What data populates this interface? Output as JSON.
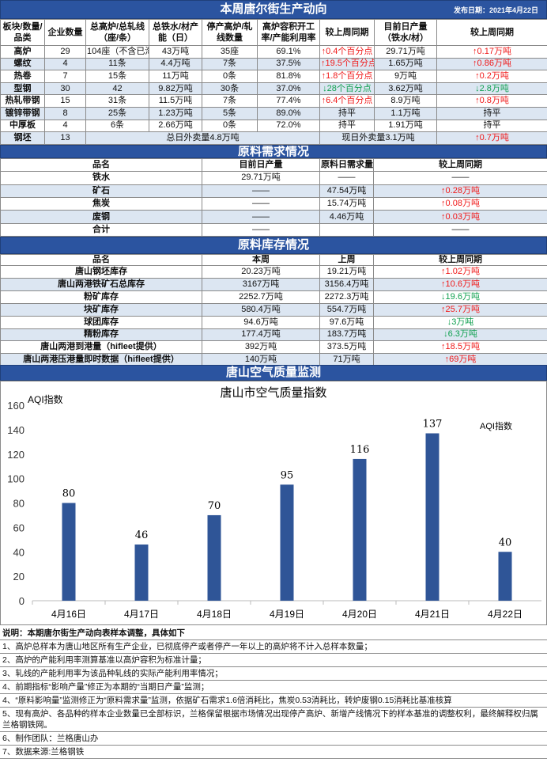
{
  "header": {
    "title": "本周唐尔街生产动向",
    "publish_date": "发布日期：2021年4月22日"
  },
  "production": {
    "columns": [
      "板块/数量/品类",
      "企业数量",
      "总高炉/总轧线（座/条）",
      "总铁水/材产能（日）",
      "停产高炉/轧线数量",
      "高炉容积开工率/产能利用率",
      "较上周同期",
      "目前日产量（铁水/材）",
      "较上周同期"
    ],
    "rows": [
      [
        "高炉",
        "29",
        "104座（不含已淘",
        "43万吨",
        "35座",
        "69.1%",
        "↑0.4个百分点",
        "29.71万吨",
        "↑0.17万吨"
      ],
      [
        "螺纹",
        "4",
        "11条",
        "4.4万吨",
        "7条",
        "37.5%",
        "↑19.5个百分点",
        "1.65万吨",
        "↑0.86万吨"
      ],
      [
        "热卷",
        "7",
        "15条",
        "11万吨",
        "0条",
        "81.8%",
        "↑1.8个百分点",
        "9万吨",
        "↑0.2万吨"
      ],
      [
        "型钢",
        "30",
        "42",
        "9.82万吨",
        "30条",
        "37.0%",
        "↓28个百分点",
        "3.62万吨",
        "↓2.8万吨"
      ],
      [
        "热轧带钢",
        "15",
        "31条",
        "11.5万吨",
        "7条",
        "77.4%",
        "↑6.4个百分点",
        "8.9万吨",
        "↑0.8万吨"
      ],
      [
        "镀锌带钢",
        "8",
        "25条",
        "1.23万吨",
        "5条",
        "89.0%",
        "持平",
        "1.1万吨",
        "持平"
      ],
      [
        "中厚板",
        "4",
        "6条",
        "2.66万吨",
        "0条",
        "72.0%",
        "持平",
        "1.91万吨",
        "持平"
      ]
    ],
    "billet": {
      "name": "钢坯",
      "count": "13",
      "total_sales": "总日外卖量4.8万吨",
      "current_sales": "现日外卖量3.1万吨",
      "change": "↑0.7万吨"
    }
  },
  "demand": {
    "title": "原料需求情况",
    "columns": [
      "品名",
      "目前日产量",
      "原料日需求量",
      "较上周同期"
    ],
    "rows": [
      [
        "铁水",
        "29.71万吨",
        "——",
        "——"
      ],
      [
        "矿石",
        "——",
        "47.54万吨",
        "↑0.28万吨"
      ],
      [
        "焦炭",
        "——",
        "15.74万吨",
        "↑0.08万吨"
      ],
      [
        "废钢",
        "——",
        "4.46万吨",
        "↑0.03万吨"
      ],
      [
        "合计",
        "——",
        "",
        "——"
      ]
    ]
  },
  "inventory": {
    "title": "原料库存情况",
    "columns": [
      "品名",
      "本周",
      "上周",
      "较上周同期"
    ],
    "rows": [
      [
        "唐山钢坯库存",
        "20.23万吨",
        "19.21万吨",
        "↑1.02万吨"
      ],
      [
        "唐山两港铁矿石总库存",
        "3167万吨",
        "3156.4万吨",
        "↑10.6万吨"
      ],
      [
        "粉矿库存",
        "2252.7万吨",
        "2272.3万吨",
        "↓19.6万吨"
      ],
      [
        "块矿库存",
        "580.4万吨",
        "554.7万吨",
        "↑25.7万吨"
      ],
      [
        "球团库存",
        "94.6万吨",
        "97.6万吨",
        "↓3万吨"
      ],
      [
        "精粉库存",
        "177.4万吨",
        "183.7万吨",
        "↓6.3万吨"
      ],
      [
        "唐山两港到港量（hifleet提供）",
        "392万吨",
        "373.5万吨",
        "↑18.5万吨"
      ],
      [
        "唐山两港压港量即时数据（hifleet提供）",
        "140万吨",
        "71万吨",
        "↑69万吨"
      ]
    ]
  },
  "air": {
    "title": "唐山空气质量监测"
  },
  "chart_data": {
    "type": "bar",
    "title": "唐山市空气质量指数",
    "ylabel": "AQI指数",
    "legend": "AQI指数",
    "categories": [
      "4月16日",
      "4月17日",
      "4月18日",
      "4月19日",
      "4月20日",
      "4月21日",
      "4月22日"
    ],
    "values": [
      80,
      46,
      70,
      95,
      116,
      137,
      40
    ],
    "ylim": [
      0,
      160
    ],
    "yticks": [
      0,
      20,
      40,
      60,
      80,
      100,
      120,
      140,
      160
    ],
    "grid": false,
    "bar_color": "#2f5597"
  },
  "notes": [
    "说明：本期唐尔街生产动向表样本调整，具体如下",
    "1、高炉总样本为唐山地区所有生产企业，已彻底停产或者停产一年以上的高炉将不计入总样本数量；",
    "2、高炉的产能利用率测算基准以高炉容积为标准计量；",
    "3、轧线的产能利用率为该品种轧线的实际产能利用率情况；",
    "4、前期指标“影响产量”修正为本期的“当期日产量”监测；",
    "4、“原料影响量”监测修正为“原料需求量”监测，依据矿石需求1.6倍消耗比，焦炭0.53消耗比，转炉废钢0.15消耗比基准核算",
    "5、现有高炉、各品种的样本企业数量已全部标识，兰格保留根据市场情况出现停产高炉、新增产线情况下的样本基准的调整权利，最终解释权归属兰格钢铁网。",
    "6、制作团队：兰格唐山办",
    "7、数据来源:兰格钢铁"
  ],
  "colors": {
    "header_blue": "#2b54a0",
    "row_alt": "#dce6f2",
    "up": "#f01818",
    "down": "#10a050"
  }
}
